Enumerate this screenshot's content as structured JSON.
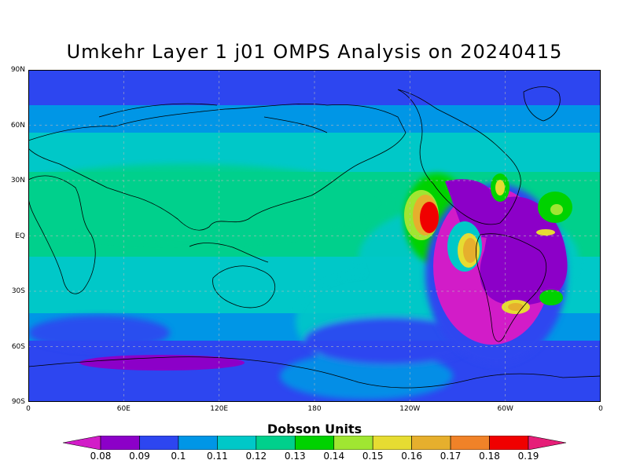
{
  "title": "Umkehr Layer 1 j01 OMPS Analysis on 20240415",
  "lat_labels": [
    "90N",
    "60N",
    "30N",
    "EQ",
    "30S",
    "60S",
    "90S"
  ],
  "lon_labels": [
    "0",
    "60E",
    "120E",
    "180",
    "120W",
    "60W",
    "0"
  ],
  "legend": {
    "title": "Dobson Units",
    "levels": [
      "0.08",
      "0.09",
      "0.1",
      "0.11",
      "0.12",
      "0.13",
      "0.14",
      "0.15",
      "0.16",
      "0.17",
      "0.18",
      "0.19"
    ],
    "colors": [
      "#d21cc8",
      "#8c00c8",
      "#2d46f0",
      "#0096e6",
      "#00c8c8",
      "#00d08c",
      "#00d200",
      "#a0e632",
      "#e6dc32",
      "#e6af2d",
      "#f08228",
      "#f00000",
      "#e61e78"
    ]
  },
  "map_colors": {
    "band_0.09": "#2d46f0",
    "band_0.10": "#0096e6",
    "band_0.11": "#00aadc",
    "band_0.12": "#00c8c8",
    "band_0.13": "#00d08c",
    "band_0.14": "#00d200",
    "band_0.15": "#a0e632",
    "band_0.16": "#e6dc32",
    "band_0.17": "#e6af2d",
    "band_0.18": "#f08228",
    "band_0.19": "#f00000",
    "band_0.08": "#8c00c8"
  }
}
